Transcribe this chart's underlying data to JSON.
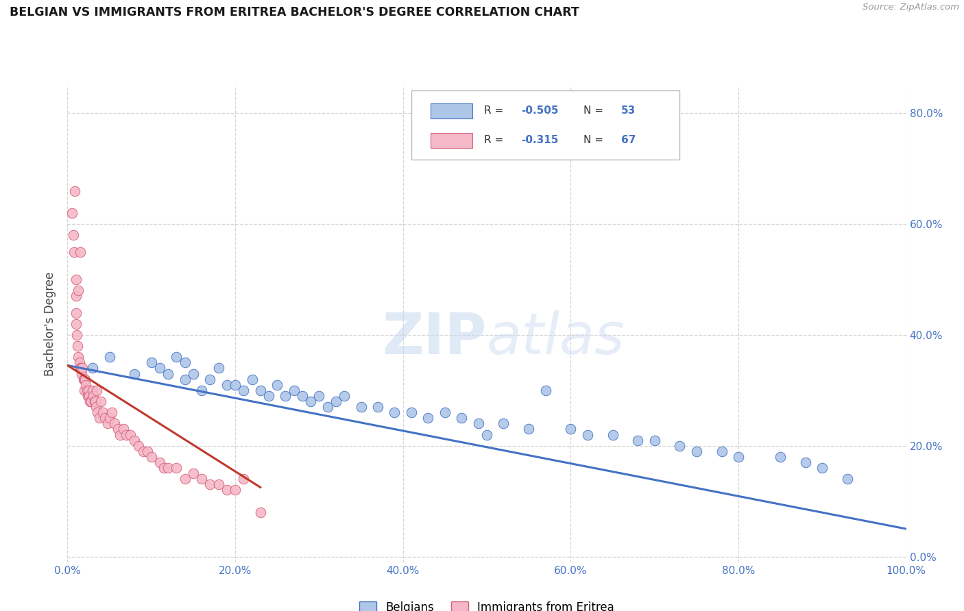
{
  "title": "BELGIAN VS IMMIGRANTS FROM ERITREA BACHELOR'S DEGREE CORRELATION CHART",
  "source": "Source: ZipAtlas.com",
  "ylabel": "Bachelor's Degree",
  "watermark_zip": "ZIP",
  "watermark_atlas": "atlas",
  "xlim": [
    0,
    1.0
  ],
  "ylim": [
    -0.01,
    0.85
  ],
  "xticks": [
    0.0,
    0.2,
    0.4,
    0.6,
    0.8,
    1.0
  ],
  "yticks": [
    0.0,
    0.2,
    0.4,
    0.6,
    0.8
  ],
  "ytick_labels_right": [
    "0.0%",
    "20.0%",
    "40.0%",
    "60.0%",
    "80.0%"
  ],
  "xtick_labels": [
    "0.0%",
    "20.0%",
    "40.0%",
    "60.0%",
    "80.0%",
    "100.0%"
  ],
  "color_belgian": "#aec6e8",
  "color_eritrea": "#f5b8c8",
  "color_line_belgian": "#4472c4",
  "color_line_eritrea": "#c0392b",
  "title_color": "#1a1a1a",
  "axis_tick_color": "#4472c4",
  "background_color": "#ffffff",
  "grid_color": "#d0d0d0",
  "legend_r1": "-0.505",
  "legend_n1": "53",
  "legend_r2": "-0.315",
  "legend_n2": "67",
  "belgians_x": [
    0.03,
    0.05,
    0.08,
    0.1,
    0.11,
    0.12,
    0.13,
    0.14,
    0.14,
    0.15,
    0.16,
    0.17,
    0.18,
    0.19,
    0.2,
    0.21,
    0.22,
    0.23,
    0.24,
    0.25,
    0.26,
    0.27,
    0.28,
    0.29,
    0.3,
    0.31,
    0.32,
    0.33,
    0.35,
    0.37,
    0.39,
    0.41,
    0.43,
    0.45,
    0.47,
    0.49,
    0.5,
    0.52,
    0.55,
    0.57,
    0.6,
    0.62,
    0.65,
    0.68,
    0.7,
    0.73,
    0.75,
    0.78,
    0.8,
    0.85,
    0.88,
    0.9,
    0.93
  ],
  "belgians_y": [
    0.34,
    0.36,
    0.33,
    0.35,
    0.34,
    0.33,
    0.36,
    0.32,
    0.35,
    0.33,
    0.3,
    0.32,
    0.34,
    0.31,
    0.31,
    0.3,
    0.32,
    0.3,
    0.29,
    0.31,
    0.29,
    0.3,
    0.29,
    0.28,
    0.29,
    0.27,
    0.28,
    0.29,
    0.27,
    0.27,
    0.26,
    0.26,
    0.25,
    0.26,
    0.25,
    0.24,
    0.22,
    0.24,
    0.23,
    0.3,
    0.23,
    0.22,
    0.22,
    0.21,
    0.21,
    0.2,
    0.19,
    0.19,
    0.18,
    0.18,
    0.17,
    0.16,
    0.14
  ],
  "eritrea_x": [
    0.005,
    0.007,
    0.008,
    0.009,
    0.01,
    0.01,
    0.01,
    0.01,
    0.011,
    0.012,
    0.013,
    0.013,
    0.014,
    0.015,
    0.015,
    0.016,
    0.017,
    0.018,
    0.019,
    0.02,
    0.02,
    0.021,
    0.022,
    0.023,
    0.024,
    0.025,
    0.026,
    0.027,
    0.028,
    0.03,
    0.031,
    0.032,
    0.033,
    0.034,
    0.035,
    0.036,
    0.038,
    0.04,
    0.042,
    0.045,
    0.048,
    0.05,
    0.053,
    0.056,
    0.06,
    0.063,
    0.067,
    0.07,
    0.075,
    0.08,
    0.085,
    0.09,
    0.095,
    0.1,
    0.11,
    0.115,
    0.12,
    0.13,
    0.14,
    0.15,
    0.16,
    0.17,
    0.18,
    0.19,
    0.2,
    0.21,
    0.23
  ],
  "eritrea_y": [
    0.62,
    0.58,
    0.55,
    0.66,
    0.5,
    0.47,
    0.44,
    0.42,
    0.4,
    0.38,
    0.36,
    0.48,
    0.35,
    0.34,
    0.55,
    0.34,
    0.33,
    0.34,
    0.32,
    0.32,
    0.3,
    0.32,
    0.31,
    0.3,
    0.29,
    0.3,
    0.29,
    0.28,
    0.28,
    0.3,
    0.29,
    0.28,
    0.28,
    0.27,
    0.3,
    0.26,
    0.25,
    0.28,
    0.26,
    0.25,
    0.24,
    0.25,
    0.26,
    0.24,
    0.23,
    0.22,
    0.23,
    0.22,
    0.22,
    0.21,
    0.2,
    0.19,
    0.19,
    0.18,
    0.17,
    0.16,
    0.16,
    0.16,
    0.14,
    0.15,
    0.14,
    0.13,
    0.13,
    0.12,
    0.12,
    0.14,
    0.08
  ],
  "belgian_line_x": [
    0.0,
    1.0
  ],
  "belgian_line_y": [
    0.345,
    0.05
  ],
  "eritrea_line_x": [
    0.0,
    0.23
  ],
  "eritrea_line_y": [
    0.345,
    0.125
  ]
}
